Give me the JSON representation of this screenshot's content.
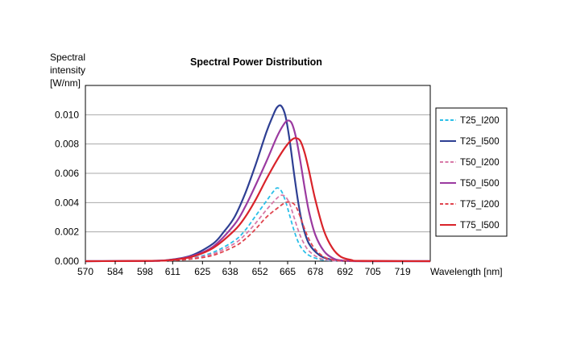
{
  "chart_data": {
    "type": "line",
    "title": "Spectral Power Distribution",
    "ylabel_lines": [
      "Spectral",
      "intensity",
      "[W/nm]"
    ],
    "xlabel": "Wavelength [nm]",
    "xlim": [
      570,
      732
    ],
    "ylim": [
      0,
      0.012
    ],
    "x_ticks": [
      570,
      584,
      598,
      611,
      625,
      638,
      652,
      665,
      678,
      692,
      705,
      719
    ],
    "y_ticks": [
      "0.000",
      "0.002",
      "0.004",
      "0.006",
      "0.008",
      "0.010"
    ],
    "y_tick_values": [
      0,
      0.002,
      0.004,
      0.006,
      0.008,
      0.01
    ],
    "grid": "horizontal",
    "legend_position": "right",
    "series": [
      {
        "name": "T25_I200",
        "color": "#2bbfe8",
        "dash": true,
        "x": [
          570,
          600,
          610,
          620,
          630,
          640,
          645,
          650,
          655,
          658,
          660,
          662,
          664,
          666,
          668,
          670,
          672,
          675,
          680,
          685,
          690,
          700,
          732
        ],
        "y": [
          0,
          1e-05,
          6e-05,
          0.00022,
          0.0006,
          0.0014,
          0.0021,
          0.0031,
          0.0041,
          0.0047,
          0.005,
          0.0048,
          0.0041,
          0.0031,
          0.0021,
          0.0013,
          0.0008,
          0.0004,
          0.00012,
          4e-05,
          1e-05,
          0,
          0
        ]
      },
      {
        "name": "T25_I500",
        "color": "#2e3f93",
        "dash": false,
        "x": [
          570,
          600,
          610,
          620,
          630,
          635,
          640,
          645,
          650,
          655,
          658,
          660,
          662,
          664,
          666,
          668,
          670,
          672,
          675,
          680,
          685,
          690,
          700,
          732
        ],
        "y": [
          0,
          2e-05,
          0.0001,
          0.0004,
          0.0012,
          0.002,
          0.003,
          0.0046,
          0.0066,
          0.0088,
          0.0099,
          0.0105,
          0.0106,
          0.0099,
          0.0082,
          0.006,
          0.004,
          0.0025,
          0.0012,
          0.0004,
          0.00012,
          3e-05,
          0,
          0
        ]
      },
      {
        "name": "T50_I200",
        "color": "#d87aa8",
        "dash": true,
        "x": [
          570,
          600,
          610,
          620,
          630,
          640,
          645,
          650,
          655,
          660,
          662,
          664,
          666,
          668,
          670,
          672,
          675,
          680,
          685,
          690,
          700,
          732
        ],
        "y": [
          0,
          1e-05,
          5e-05,
          0.0002,
          0.0005,
          0.0012,
          0.0018,
          0.0026,
          0.0035,
          0.0043,
          0.0045,
          0.0044,
          0.0039,
          0.003,
          0.0021,
          0.0014,
          0.0007,
          0.0002,
          6e-05,
          1e-05,
          0,
          0
        ]
      },
      {
        "name": "T50_I500",
        "color": "#9b3aa0",
        "dash": false,
        "x": [
          570,
          600,
          610,
          620,
          630,
          640,
          645,
          650,
          655,
          660,
          663,
          665,
          667,
          669,
          671,
          673,
          675,
          678,
          682,
          686,
          690,
          700,
          732
        ],
        "y": [
          0,
          2e-05,
          9e-05,
          0.00035,
          0.001,
          0.0025,
          0.0037,
          0.0052,
          0.0068,
          0.0085,
          0.0093,
          0.0096,
          0.0094,
          0.0084,
          0.0068,
          0.005,
          0.0034,
          0.0018,
          0.0007,
          0.00022,
          6e-05,
          0,
          0
        ]
      },
      {
        "name": "T75_I200",
        "color": "#e0454f",
        "dash": true,
        "x": [
          570,
          600,
          610,
          620,
          630,
          640,
          645,
          650,
          655,
          660,
          664,
          667,
          669,
          671,
          673,
          675,
          678,
          682,
          686,
          690,
          700,
          732
        ],
        "y": [
          0,
          1e-05,
          4e-05,
          0.00015,
          0.0004,
          0.001,
          0.0015,
          0.0022,
          0.003,
          0.0036,
          0.004,
          0.004,
          0.0037,
          0.003,
          0.0022,
          0.0015,
          0.0008,
          0.0003,
          0.0001,
          3e-05,
          0,
          0
        ]
      },
      {
        "name": "T75_I500",
        "color": "#d9232a",
        "dash": false,
        "x": [
          570,
          600,
          610,
          620,
          630,
          640,
          645,
          650,
          655,
          660,
          664,
          667,
          669,
          671,
          673,
          675,
          678,
          682,
          686,
          690,
          695,
          700,
          732
        ],
        "y": [
          0,
          2e-05,
          8e-05,
          0.0003,
          0.0009,
          0.0021,
          0.003,
          0.0042,
          0.0056,
          0.0069,
          0.0078,
          0.0083,
          0.0084,
          0.0082,
          0.0074,
          0.0062,
          0.0042,
          0.0021,
          0.0009,
          0.0003,
          8e-05,
          2e-05,
          0
        ]
      }
    ]
  }
}
